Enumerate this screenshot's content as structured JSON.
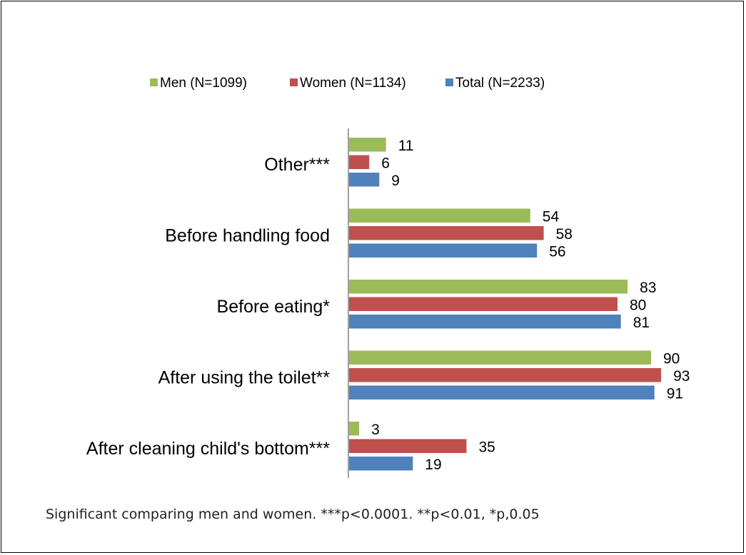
{
  "chart_data": {
    "type": "bar",
    "orientation": "horizontal",
    "categories": [
      "Other***",
      "Before handling food",
      "Before eating*",
      "After using the toilet**",
      "After cleaning child's bottom***"
    ],
    "series": [
      {
        "name": "Men (N=1099)",
        "color": "#9BBB59",
        "values": [
          11,
          54,
          83,
          90,
          3
        ]
      },
      {
        "name": "Women (N=1134)",
        "color": "#C0504D",
        "values": [
          6,
          58,
          80,
          93,
          35
        ]
      },
      {
        "name": "Total (N=2233)",
        "color": "#4F81BD",
        "values": [
          9,
          56,
          81,
          91,
          19
        ]
      }
    ],
    "xlim": [
      0,
      100
    ],
    "grid": false,
    "legend_position": "top",
    "data_labels": true
  },
  "footnote": "Significant comparing men and women. ***p<0.0001. **p<0.01, *p,0.05"
}
